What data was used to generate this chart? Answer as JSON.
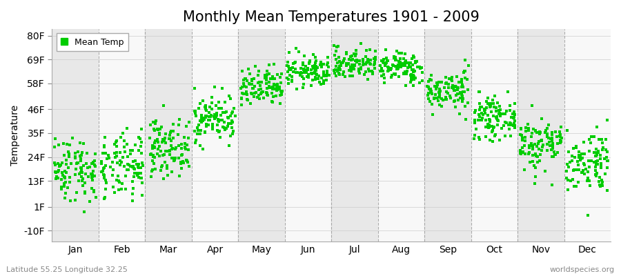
{
  "title": "Monthly Mean Temperatures 1901 - 2009",
  "ylabel": "Temperature",
  "xlabel_labels": [
    "Jan",
    "Feb",
    "Mar",
    "Apr",
    "May",
    "Jun",
    "Jul",
    "Aug",
    "Sep",
    "Oct",
    "Nov",
    "Dec"
  ],
  "ytick_labels": [
    "-10F",
    "1F",
    "13F",
    "24F",
    "35F",
    "46F",
    "58F",
    "69F",
    "80F"
  ],
  "ytick_values": [
    -10,
    1,
    13,
    24,
    35,
    46,
    58,
    69,
    80
  ],
  "ylim": [
    -15,
    83
  ],
  "dot_color": "#00CC00",
  "dot_size": 5,
  "background_color": "#ffffff",
  "band_colors_even": "#e8e8e8",
  "band_colors_odd": "#f8f8f8",
  "legend_label": "Mean Temp",
  "footer_left": "Latitude 55.25 Longitude 32.25",
  "footer_right": "worldspecies.org",
  "title_fontsize": 15,
  "label_fontsize": 10,
  "tick_fontsize": 10,
  "monthly_means_C": [
    -7.5,
    -7.2,
    -2.0,
    5.5,
    13.0,
    17.5,
    19.5,
    18.5,
    12.5,
    5.5,
    -1.0,
    -5.5
  ],
  "monthly_stds_C": [
    4.2,
    4.2,
    3.5,
    3.0,
    2.5,
    2.0,
    2.0,
    2.0,
    2.5,
    2.5,
    3.5,
    4.0
  ],
  "n_years": 109,
  "seed": 42
}
